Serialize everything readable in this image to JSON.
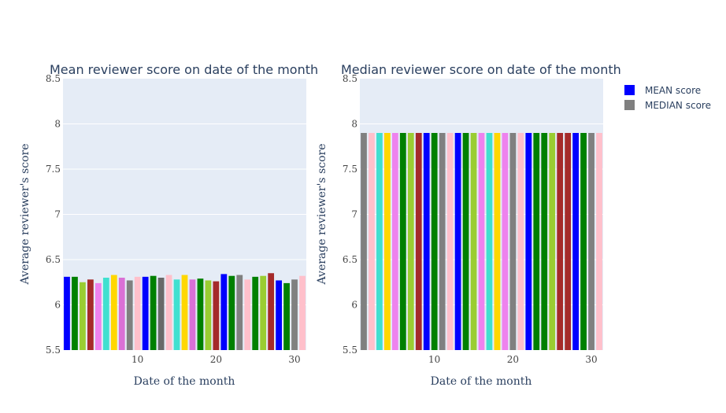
{
  "chart_data": [
    {
      "type": "bar",
      "title": "Mean reviewer score on date of the month",
      "xlabel": "Date of the month",
      "ylabel": "Average reviewer's score",
      "xlim": [
        0.5,
        31.5
      ],
      "ylim": [
        5.5,
        8.5
      ],
      "x_ticks": [
        10,
        20,
        30
      ],
      "y_ticks": [
        5.5,
        6,
        6.5,
        7,
        7.5,
        8,
        8.5
      ],
      "x": [
        1,
        2,
        3,
        4,
        5,
        6,
        7,
        8,
        9,
        10,
        11,
        12,
        13,
        14,
        15,
        16,
        17,
        18,
        19,
        20,
        21,
        22,
        23,
        24,
        25,
        26,
        27,
        28,
        29,
        30,
        31
      ],
      "values": [
        6.31,
        6.31,
        6.25,
        6.28,
        6.24,
        6.3,
        6.33,
        6.3,
        6.27,
        6.31,
        6.31,
        6.32,
        6.3,
        6.33,
        6.28,
        6.33,
        6.28,
        6.29,
        6.27,
        6.26,
        6.34,
        6.32,
        6.33,
        6.28,
        6.31,
        6.32,
        6.35,
        6.27,
        6.24,
        6.28,
        6.32
      ],
      "colors": [
        "#0000ff",
        "#008000",
        "#9acd32",
        "#a52a2a",
        "#ee82ee",
        "#40e0d0",
        "#ffd700",
        "#da70d6",
        "#808080",
        "#ffc0cb",
        "#0000ff",
        "#008000",
        "#696969",
        "#ffc0cb",
        "#40e0d0",
        "#ffd700",
        "#da70d6",
        "#008000",
        "#9acd32",
        "#a52a2a",
        "#0000ff",
        "#008000",
        "#808080",
        "#ffc0cb",
        "#008000",
        "#9acd32",
        "#a52a2a",
        "#0000ff",
        "#008000",
        "#808080",
        "#ffc0cb"
      ]
    },
    {
      "type": "bar",
      "title": "Median reviewer score on date of the month",
      "xlabel": "Date of the month",
      "ylabel": "Average reviewer's score",
      "xlim": [
        0.5,
        31.5
      ],
      "ylim": [
        5.5,
        8.5
      ],
      "x_ticks": [
        10,
        20,
        30
      ],
      "y_ticks": [
        5.5,
        6,
        6.5,
        7,
        7.5,
        8,
        8.5
      ],
      "x": [
        1,
        2,
        3,
        4,
        5,
        6,
        7,
        8,
        9,
        10,
        11,
        12,
        13,
        14,
        15,
        16,
        17,
        18,
        19,
        20,
        21,
        22,
        23,
        24,
        25,
        26,
        27,
        28,
        29,
        30,
        31
      ],
      "values": [
        7.9,
        7.9,
        7.9,
        7.9,
        7.9,
        7.9,
        7.9,
        7.9,
        7.9,
        7.9,
        7.9,
        7.9,
        7.9,
        7.9,
        7.9,
        7.9,
        7.9,
        7.9,
        7.9,
        7.9,
        7.9,
        7.9,
        7.9,
        7.9,
        7.9,
        7.9,
        7.9,
        7.9,
        7.9,
        7.9,
        7.9
      ],
      "colors": [
        "#808080",
        "#ffc0cb",
        "#40e0d0",
        "#ffd700",
        "#ee82ee",
        "#008000",
        "#9acd32",
        "#a52a2a",
        "#0000ff",
        "#008000",
        "#808080",
        "#ffc0cb",
        "#0000ff",
        "#008000",
        "#9acd32",
        "#ee82ee",
        "#40e0d0",
        "#ffd700",
        "#ee82ee",
        "#808080",
        "#ffc0cb",
        "#0000ff",
        "#008000",
        "#008000",
        "#9acd32",
        "#a52a2a",
        "#a52a2a",
        "#0000ff",
        "#008000",
        "#808080",
        "#ffc0cb"
      ]
    }
  ],
  "legend": {
    "placement": "top-right",
    "items": [
      {
        "label": "MEAN score",
        "color": "#0000ff"
      },
      {
        "label": "MEDIAN score",
        "color": "#808080"
      }
    ]
  }
}
